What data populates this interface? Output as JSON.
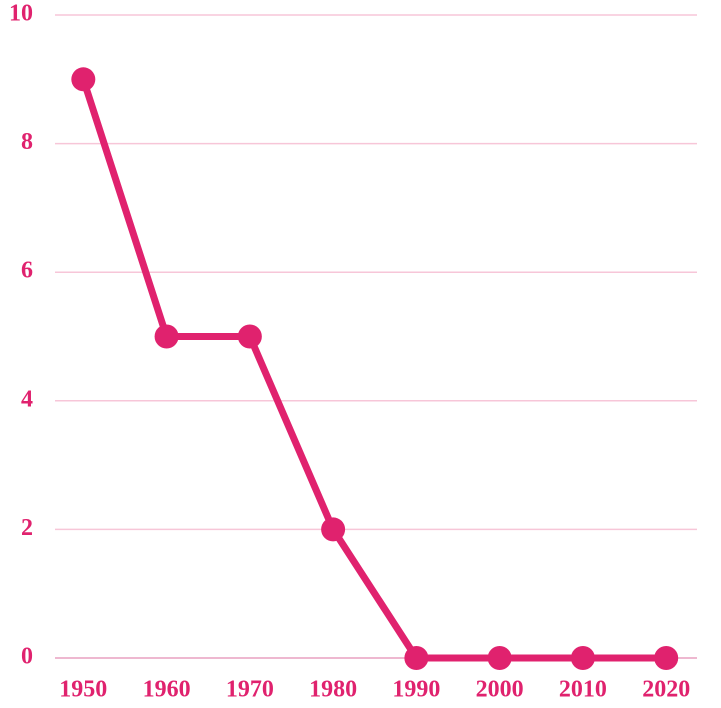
{
  "chart_data": {
    "type": "line",
    "x": [
      1950,
      1960,
      1970,
      1980,
      1990,
      2000,
      2010,
      2020
    ],
    "values": [
      9,
      5,
      5,
      2,
      0,
      0,
      0,
      0
    ],
    "color": "#e0226e",
    "xlim": [
      1946.6,
      2023.7
    ],
    "xticks": [
      1950,
      1960,
      1970,
      1980,
      1990,
      2000,
      2010,
      2020
    ],
    "ylim": [
      0,
      10
    ],
    "yticks": [
      0,
      2,
      4,
      6,
      8,
      10
    ],
    "grid": true,
    "grid_color": "#f7c6d8"
  }
}
